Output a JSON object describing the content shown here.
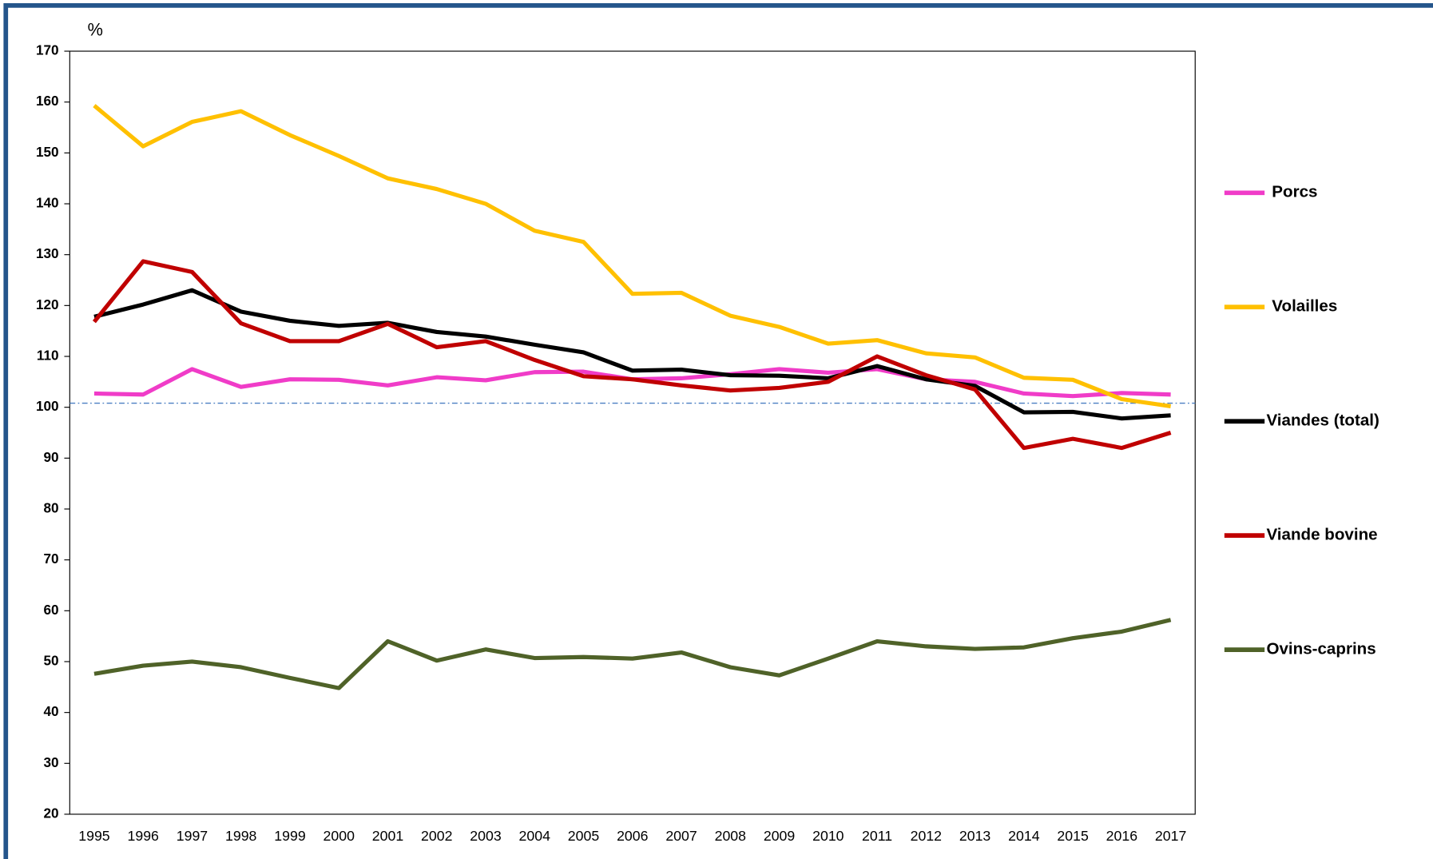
{
  "chart_data": {
    "type": "line",
    "y_label": "%",
    "x": [
      1995,
      1996,
      1997,
      1998,
      1999,
      2000,
      2001,
      2002,
      2003,
      2004,
      2005,
      2006,
      2007,
      2008,
      2009,
      2010,
      2011,
      2012,
      2013,
      2014,
      2015,
      2016,
      2017
    ],
    "xlim": [
      1994.5,
      2017.5
    ],
    "ylim": [
      20,
      170
    ],
    "yticks": [
      20,
      30,
      40,
      50,
      60,
      70,
      80,
      90,
      100,
      110,
      120,
      130,
      140,
      150,
      160,
      170
    ],
    "reference_line": 100.8,
    "reference_color": "#4a7fc1",
    "legend": "right",
    "series": [
      {
        "name": "Porcs",
        "color": "#f03cc8",
        "values": [
          102.7,
          102.5,
          107.5,
          104,
          105.5,
          105.4,
          104.3,
          105.9,
          105.3,
          106.9,
          107,
          105.5,
          105.7,
          106.5,
          107.5,
          106.8,
          107.5,
          105.5,
          105,
          102.7,
          102.2,
          102.8,
          102.5
        ]
      },
      {
        "name": "Volailles",
        "color": "#ffc000",
        "values": [
          159.3,
          151.3,
          156.1,
          158.2,
          153.5,
          149.4,
          145,
          142.9,
          140,
          134.7,
          132.5,
          122.3,
          122.5,
          118,
          115.8,
          112.5,
          113.2,
          110.6,
          109.8,
          105.8,
          105.4,
          101.6,
          100.2
        ]
      },
      {
        "name": "Viandes (total)",
        "color": "#000000",
        "values": [
          117.8,
          120.2,
          123,
          118.8,
          117,
          116,
          116.6,
          114.8,
          113.9,
          112.3,
          110.8,
          107.2,
          107.4,
          106.3,
          106.2,
          105.7,
          108.1,
          105.5,
          104.2,
          99,
          99.1,
          97.8,
          98.4
        ]
      },
      {
        "name": "Viande bovine",
        "color": "#c00000",
        "values": [
          116.8,
          128.7,
          126.6,
          116.5,
          113,
          113,
          116.4,
          111.8,
          113,
          109.3,
          106.1,
          105.5,
          104.3,
          103.3,
          103.8,
          105,
          110,
          106.3,
          103.5,
          92,
          93.8,
          92,
          95
        ]
      },
      {
        "name": "Ovins-caprins",
        "color": "#4f6228",
        "values": [
          47.6,
          49.2,
          50,
          48.9,
          46.8,
          44.8,
          54,
          50.2,
          52.4,
          50.7,
          50.9,
          50.6,
          51.8,
          48.9,
          47.3,
          50.6,
          54,
          53,
          52.5,
          52.8,
          54.6,
          55.9,
          58.2
        ]
      }
    ]
  }
}
